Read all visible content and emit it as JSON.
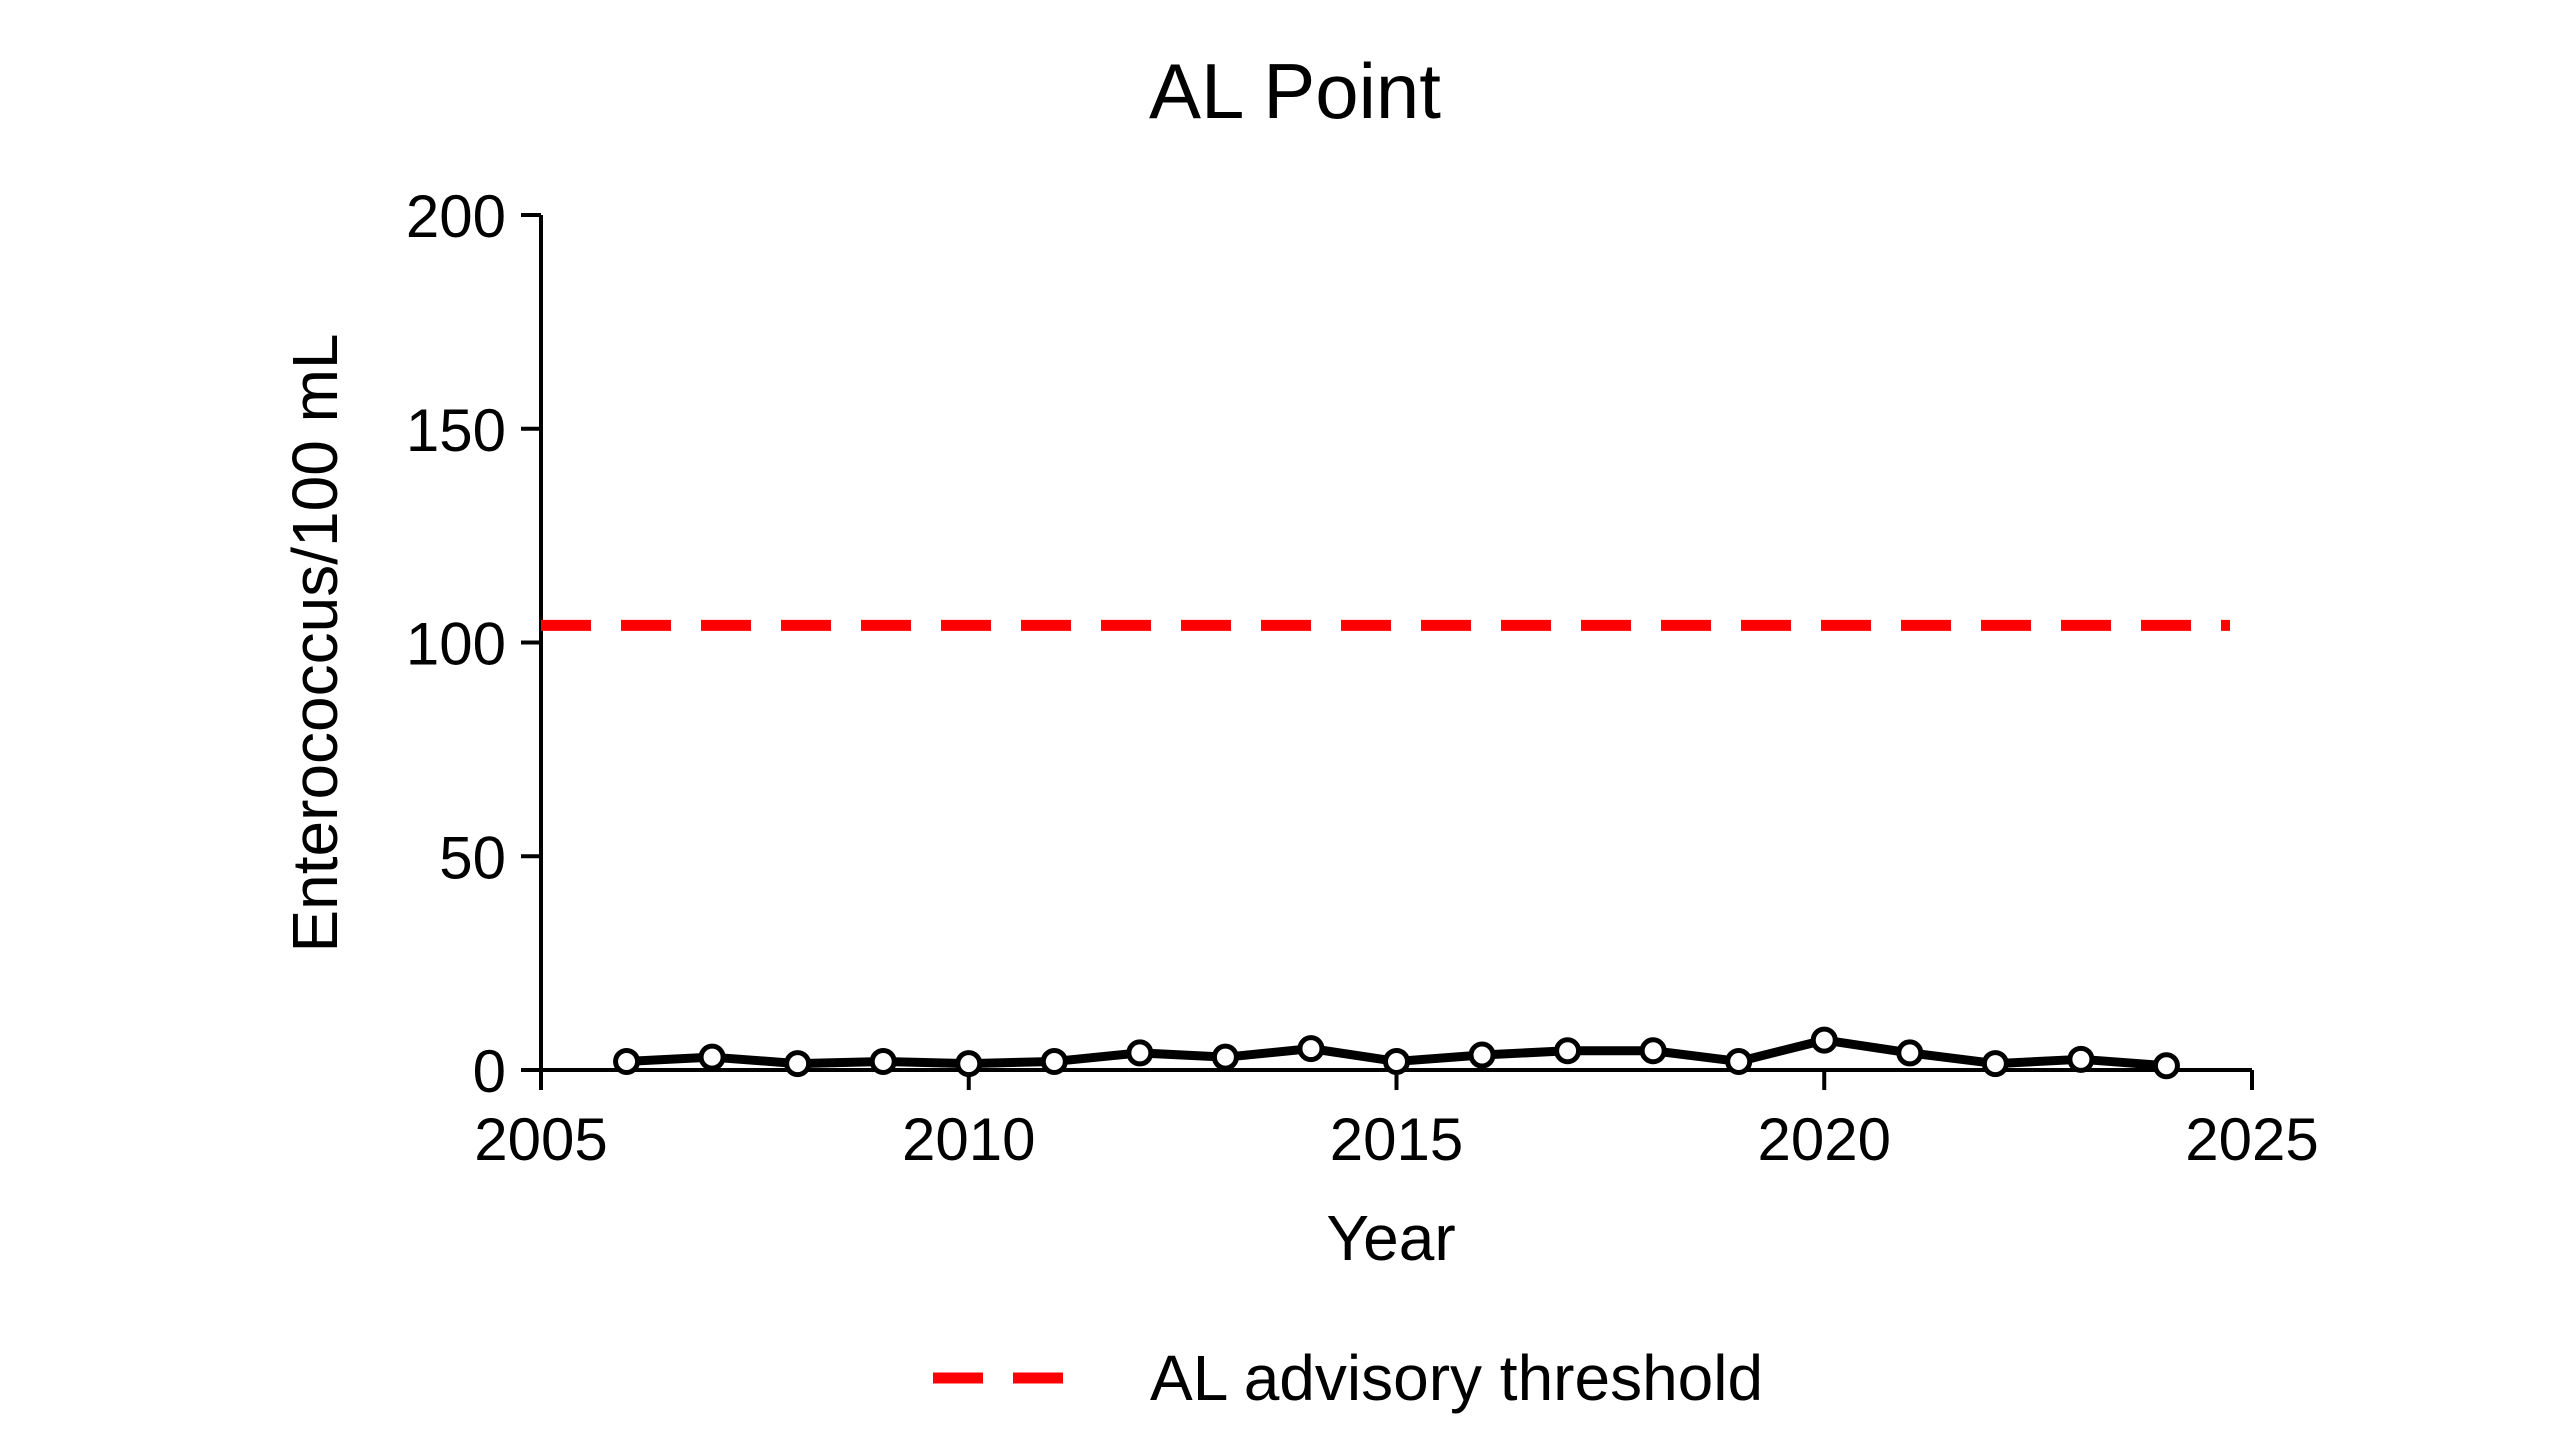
{
  "chart_data": {
    "type": "line",
    "title": "AL Point",
    "xlabel": "Year",
    "ylabel": "Enterococcus/100 mL",
    "xlim": [
      2005,
      2025
    ],
    "ylim": [
      0,
      200
    ],
    "x_ticks": [
      2005,
      2010,
      2015,
      2020,
      2025
    ],
    "y_ticks": [
      0,
      50,
      100,
      150,
      200
    ],
    "grid": false,
    "legend_position": "bottom-center",
    "series": [
      {
        "kind": "measured",
        "color": "#000000",
        "marker": "open-circle",
        "x": [
          2006,
          2007,
          2008,
          2009,
          2010,
          2011,
          2012,
          2013,
          2014,
          2015,
          2016,
          2017,
          2018,
          2019,
          2020,
          2021,
          2022,
          2023,
          2024
        ],
        "y": [
          2,
          3,
          1.5,
          2,
          1.5,
          2,
          4,
          3,
          5,
          2,
          3.5,
          4.5,
          4.5,
          2,
          7,
          4,
          1.5,
          2.5,
          1
        ]
      },
      {
        "kind": "threshold",
        "name": "AL advisory threshold",
        "color": "#ff0000",
        "style": "dashed",
        "y": 104
      }
    ]
  }
}
